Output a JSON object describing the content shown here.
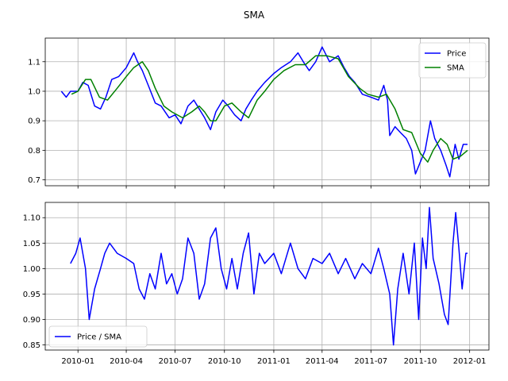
{
  "chart_data": {
    "type": "line",
    "title": "SMA",
    "x_ticks": [
      "2010-01",
      "2010-04",
      "2010-07",
      "2010-10",
      "2011-01",
      "2011-04",
      "2011-07",
      "2011-10",
      "2012-01"
    ],
    "xlim": [
      "2009-11-01",
      "2012-02-06"
    ],
    "grid": true,
    "shared_x": true,
    "panels": [
      {
        "name": "price-panel",
        "ylim": [
          0.68,
          1.18
        ],
        "y_ticks": [
          0.7,
          0.8,
          0.9,
          1.0,
          1.1
        ],
        "y_tick_labels": [
          "0.7",
          "0.8",
          "0.9",
          "1.0",
          "1.1"
        ],
        "legend": "upper right",
        "series": [
          {
            "name": "Price",
            "color": "#0000ff",
            "points": [
              [
                "2009-12-01",
                1.0
              ],
              [
                "2009-12-10",
                0.98
              ],
              [
                "2009-12-18",
                1.0
              ],
              [
                "2010-01-01",
                1.0
              ],
              [
                "2010-01-10",
                1.03
              ],
              [
                "2010-01-20",
                1.02
              ],
              [
                "2010-02-01",
                0.95
              ],
              [
                "2010-02-12",
                0.94
              ],
              [
                "2010-02-22",
                0.98
              ],
              [
                "2010-03-05",
                1.04
              ],
              [
                "2010-03-18",
                1.05
              ],
              [
                "2010-04-01",
                1.08
              ],
              [
                "2010-04-15",
                1.13
              ],
              [
                "2010-04-22",
                1.1
              ],
              [
                "2010-05-01",
                1.07
              ],
              [
                "2010-05-12",
                1.02
              ],
              [
                "2010-05-25",
                0.96
              ],
              [
                "2010-06-05",
                0.95
              ],
              [
                "2010-06-20",
                0.91
              ],
              [
                "2010-07-01",
                0.92
              ],
              [
                "2010-07-12",
                0.89
              ],
              [
                "2010-07-25",
                0.95
              ],
              [
                "2010-08-05",
                0.97
              ],
              [
                "2010-08-15",
                0.94
              ],
              [
                "2010-08-25",
                0.91
              ],
              [
                "2010-09-05",
                0.87
              ],
              [
                "2010-09-15",
                0.93
              ],
              [
                "2010-09-28",
                0.97
              ],
              [
                "2010-10-08",
                0.95
              ],
              [
                "2010-10-20",
                0.92
              ],
              [
                "2010-11-01",
                0.9
              ],
              [
                "2010-11-10",
                0.94
              ],
              [
                "2010-11-20",
                0.97
              ],
              [
                "2010-12-01",
                1.0
              ],
              [
                "2010-12-15",
                1.03
              ],
              [
                "2011-01-01",
                1.06
              ],
              [
                "2011-01-15",
                1.08
              ],
              [
                "2011-02-01",
                1.1
              ],
              [
                "2011-02-15",
                1.13
              ],
              [
                "2011-02-25",
                1.1
              ],
              [
                "2011-03-08",
                1.07
              ],
              [
                "2011-03-20",
                1.1
              ],
              [
                "2011-04-01",
                1.15
              ],
              [
                "2011-04-15",
                1.1
              ],
              [
                "2011-05-01",
                1.12
              ],
              [
                "2011-05-12",
                1.08
              ],
              [
                "2011-05-22",
                1.05
              ],
              [
                "2011-06-01",
                1.03
              ],
              [
                "2011-06-15",
                0.99
              ],
              [
                "2011-07-01",
                0.98
              ],
              [
                "2011-07-15",
                0.97
              ],
              [
                "2011-07-25",
                1.02
              ],
              [
                "2011-08-01",
                0.97
              ],
              [
                "2011-08-05",
                0.85
              ],
              [
                "2011-08-15",
                0.88
              ],
              [
                "2011-08-25",
                0.86
              ],
              [
                "2011-09-05",
                0.84
              ],
              [
                "2011-09-15",
                0.8
              ],
              [
                "2011-09-22",
                0.72
              ],
              [
                "2011-10-01",
                0.76
              ],
              [
                "2011-10-10",
                0.8
              ],
              [
                "2011-10-20",
                0.9
              ],
              [
                "2011-10-28",
                0.84
              ],
              [
                "2011-11-08",
                0.8
              ],
              [
                "2011-11-18",
                0.75
              ],
              [
                "2011-11-25",
                0.71
              ],
              [
                "2011-12-05",
                0.82
              ],
              [
                "2011-12-12",
                0.77
              ],
              [
                "2011-12-20",
                0.82
              ],
              [
                "2011-12-28",
                0.82
              ]
            ]
          },
          {
            "name": "SMA",
            "color": "#008000",
            "points": [
              [
                "2009-12-20",
                0.99
              ],
              [
                "2010-01-01",
                1.0
              ],
              [
                "2010-01-15",
                1.04
              ],
              [
                "2010-01-25",
                1.04
              ],
              [
                "2010-02-10",
                0.98
              ],
              [
                "2010-02-25",
                0.97
              ],
              [
                "2010-03-15",
                1.01
              ],
              [
                "2010-04-01",
                1.05
              ],
              [
                "2010-04-15",
                1.08
              ],
              [
                "2010-05-01",
                1.1
              ],
              [
                "2010-05-12",
                1.07
              ],
              [
                "2010-05-25",
                1.01
              ],
              [
                "2010-06-10",
                0.95
              ],
              [
                "2010-06-25",
                0.93
              ],
              [
                "2010-07-15",
                0.91
              ],
              [
                "2010-08-01",
                0.93
              ],
              [
                "2010-08-15",
                0.95
              ],
              [
                "2010-08-25",
                0.93
              ],
              [
                "2010-09-05",
                0.9
              ],
              [
                "2010-09-15",
                0.9
              ],
              [
                "2010-10-01",
                0.95
              ],
              [
                "2010-10-15",
                0.96
              ],
              [
                "2010-11-01",
                0.93
              ],
              [
                "2010-11-15",
                0.91
              ],
              [
                "2010-12-01",
                0.97
              ],
              [
                "2010-12-15",
                1.0
              ],
              [
                "2011-01-01",
                1.04
              ],
              [
                "2011-01-20",
                1.07
              ],
              [
                "2011-02-10",
                1.09
              ],
              [
                "2011-03-01",
                1.09
              ],
              [
                "2011-03-20",
                1.12
              ],
              [
                "2011-04-10",
                1.12
              ],
              [
                "2011-05-01",
                1.11
              ],
              [
                "2011-05-20",
                1.05
              ],
              [
                "2011-06-10",
                1.01
              ],
              [
                "2011-06-25",
                0.99
              ],
              [
                "2011-07-15",
                0.98
              ],
              [
                "2011-07-30",
                0.99
              ],
              [
                "2011-08-15",
                0.94
              ],
              [
                "2011-08-30",
                0.87
              ],
              [
                "2011-09-15",
                0.86
              ],
              [
                "2011-10-01",
                0.79
              ],
              [
                "2011-10-15",
                0.76
              ],
              [
                "2011-10-25",
                0.8
              ],
              [
                "2011-11-08",
                0.84
              ],
              [
                "2011-11-20",
                0.82
              ],
              [
                "2011-12-01",
                0.77
              ],
              [
                "2011-12-15",
                0.78
              ],
              [
                "2011-12-28",
                0.8
              ]
            ]
          }
        ]
      },
      {
        "name": "ratio-panel",
        "ylim": [
          0.84,
          1.13
        ],
        "y_ticks": [
          0.85,
          0.9,
          0.95,
          1.0,
          1.05,
          1.1
        ],
        "y_tick_labels": [
          "0.85",
          "0.90",
          "0.95",
          "1.00",
          "1.05",
          "1.10"
        ],
        "legend": "lower left",
        "series": [
          {
            "name": "Price / SMA",
            "color": "#0000ff",
            "points": [
              [
                "2009-12-18",
                1.01
              ],
              [
                "2009-12-28",
                1.03
              ],
              [
                "2010-01-05",
                1.06
              ],
              [
                "2010-01-15",
                1.0
              ],
              [
                "2010-01-22",
                0.9
              ],
              [
                "2010-02-01",
                0.96
              ],
              [
                "2010-02-12",
                1.0
              ],
              [
                "2010-02-20",
                1.03
              ],
              [
                "2010-03-01",
                1.05
              ],
              [
                "2010-03-15",
                1.03
              ],
              [
                "2010-04-01",
                1.02
              ],
              [
                "2010-04-15",
                1.01
              ],
              [
                "2010-04-25",
                0.96
              ],
              [
                "2010-05-05",
                0.94
              ],
              [
                "2010-05-15",
                0.99
              ],
              [
                "2010-05-25",
                0.96
              ],
              [
                "2010-06-05",
                1.03
              ],
              [
                "2010-06-15",
                0.97
              ],
              [
                "2010-06-25",
                0.99
              ],
              [
                "2010-07-05",
                0.95
              ],
              [
                "2010-07-15",
                0.98
              ],
              [
                "2010-07-25",
                1.06
              ],
              [
                "2010-08-05",
                1.03
              ],
              [
                "2010-08-15",
                0.94
              ],
              [
                "2010-08-25",
                0.97
              ],
              [
                "2010-09-05",
                1.06
              ],
              [
                "2010-09-15",
                1.08
              ],
              [
                "2010-09-25",
                1.0
              ],
              [
                "2010-10-05",
                0.96
              ],
              [
                "2010-10-15",
                1.02
              ],
              [
                "2010-10-25",
                0.96
              ],
              [
                "2010-11-05",
                1.03
              ],
              [
                "2010-11-15",
                1.07
              ],
              [
                "2010-11-25",
                0.95
              ],
              [
                "2010-12-05",
                1.03
              ],
              [
                "2010-12-15",
                1.01
              ],
              [
                "2011-01-01",
                1.03
              ],
              [
                "2011-01-15",
                0.99
              ],
              [
                "2011-02-01",
                1.05
              ],
              [
                "2011-02-15",
                1.0
              ],
              [
                "2011-03-01",
                0.98
              ],
              [
                "2011-03-15",
                1.02
              ],
              [
                "2011-04-01",
                1.01
              ],
              [
                "2011-04-15",
                1.03
              ],
              [
                "2011-05-01",
                0.99
              ],
              [
                "2011-05-15",
                1.02
              ],
              [
                "2011-06-01",
                0.98
              ],
              [
                "2011-06-15",
                1.01
              ],
              [
                "2011-07-01",
                0.99
              ],
              [
                "2011-07-15",
                1.04
              ],
              [
                "2011-07-25",
                1.0
              ],
              [
                "2011-08-05",
                0.95
              ],
              [
                "2011-08-12",
                0.85
              ],
              [
                "2011-08-20",
                0.96
              ],
              [
                "2011-08-30",
                1.03
              ],
              [
                "2011-09-10",
                0.95
              ],
              [
                "2011-09-20",
                1.05
              ],
              [
                "2011-09-28",
                0.9
              ],
              [
                "2011-10-05",
                1.06
              ],
              [
                "2011-10-12",
                1.0
              ],
              [
                "2011-10-18",
                1.12
              ],
              [
                "2011-10-25",
                1.02
              ],
              [
                "2011-11-05",
                0.97
              ],
              [
                "2011-11-15",
                0.91
              ],
              [
                "2011-11-22",
                0.89
              ],
              [
                "2011-12-01",
                1.05
              ],
              [
                "2011-12-06",
                1.11
              ],
              [
                "2011-12-12",
                1.04
              ],
              [
                "2011-12-18",
                0.96
              ],
              [
                "2011-12-25",
                1.03
              ],
              [
                "2011-12-28",
                1.03
              ]
            ]
          }
        ]
      }
    ]
  }
}
